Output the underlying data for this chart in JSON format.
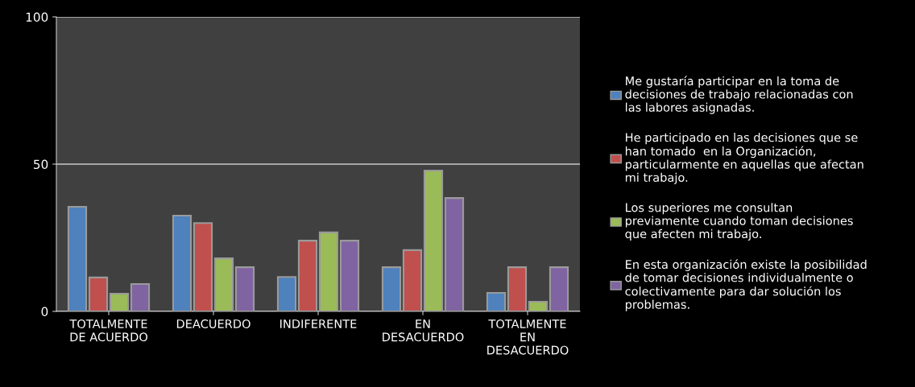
{
  "chart_data": {
    "type": "bar",
    "categories": [
      "TOTALMENTE\nDE ACUERDO",
      "DEACUERDO",
      "INDIFERENTE",
      "EN\nDESACUERDO",
      "TOTALMENTE\nEN\nDESACUERDO"
    ],
    "series": [
      {
        "name": "Me gustaría participar en la toma de\ndecisiones de trabajo relacionadas con\nlas labores asignadas.",
        "color": "#4f81bd",
        "values": [
          35.5,
          32.5,
          11.7,
          15,
          6.3
        ]
      },
      {
        "name": "He participado en las decisiones que se\nhan tomado  en la Organización,\nparticularmente en aquellas que afectan\nmi trabajo.",
        "color": "#c0504d",
        "values": [
          11.5,
          30,
          24,
          20.8,
          15
        ]
      },
      {
        "name": "Los superiores me consultan\npreviamente cuando toman decisiones\nque afecten mi trabajo.",
        "color": "#9bbb59",
        "values": [
          6,
          18,
          26.8,
          47.8,
          3.3
        ]
      },
      {
        "name": "En esta organización existe la posibilidad\nde tomar decisiones individualmente o\ncolectivamente para dar solución los\nproblemas.",
        "color": "#8064a2",
        "values": [
          9.3,
          15,
          24,
          38.5,
          15
        ]
      }
    ],
    "ylim": [
      0,
      100
    ],
    "yticks": [
      0,
      50,
      100
    ],
    "grid": "y",
    "legend": "right"
  }
}
